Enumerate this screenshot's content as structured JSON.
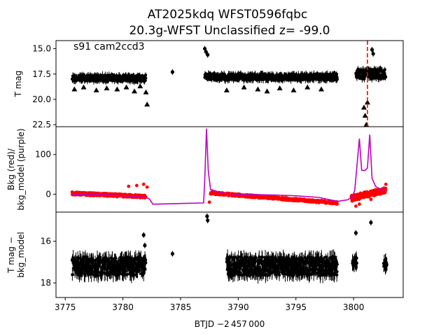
{
  "chart_data": {
    "type": "scatter",
    "title_line1": "AT2025kdq  WFST0596fqbc",
    "title_line2": "20.3g-WFST Unclassified z= -99.0",
    "annotation": "s91 cam2ccd3",
    "xlabel": "BTJD −2 457 000",
    "xlim": [
      3774.2,
      3804.3
    ],
    "xticks": [
      3775,
      3780,
      3785,
      3790,
      3795,
      3800
    ],
    "xtick_labels": [
      "3775",
      "3780",
      "3785",
      "3790",
      "3795",
      "3800"
    ],
    "vline_x": 3801.2,
    "vline_color": "#ff0000",
    "panels": [
      {
        "name": "tmag",
        "ylabel": "T mag",
        "ylim": [
          22.7,
          14.2
        ],
        "yticks": [
          15.0,
          17.5,
          20.0,
          22.5
        ],
        "ytick_labels": [
          "15.0",
          "17.5",
          "20.0",
          "22.5"
        ],
        "segments": [
          {
            "x0": 3775.6,
            "x1": 3782.0,
            "center": 17.9,
            "spread": 0.6
          },
          {
            "x0": 3787.1,
            "x1": 3798.6,
            "center": 17.8,
            "spread": 0.6
          },
          {
            "x0": 3800.2,
            "x1": 3802.8,
            "center": 17.5,
            "spread": 1.0
          }
        ],
        "triangles_upper_limits": [
          {
            "x": 3775.8,
            "y": 19.0
          },
          {
            "x": 3776.6,
            "y": 18.8
          },
          {
            "x": 3777.7,
            "y": 19.1
          },
          {
            "x": 3778.6,
            "y": 18.9
          },
          {
            "x": 3779.5,
            "y": 19.0
          },
          {
            "x": 3780.3,
            "y": 18.8
          },
          {
            "x": 3781.0,
            "y": 19.2
          },
          {
            "x": 3781.5,
            "y": 18.7
          },
          {
            "x": 3782.0,
            "y": 19.3
          },
          {
            "x": 3782.1,
            "y": 20.5
          },
          {
            "x": 3789.0,
            "y": 19.1
          },
          {
            "x": 3790.5,
            "y": 18.8
          },
          {
            "x": 3791.7,
            "y": 19.0
          },
          {
            "x": 3792.5,
            "y": 19.2
          },
          {
            "x": 3793.6,
            "y": 18.9
          },
          {
            "x": 3794.8,
            "y": 19.1
          },
          {
            "x": 3796.0,
            "y": 18.8
          },
          {
            "x": 3797.2,
            "y": 19.0
          },
          {
            "x": 3800.9,
            "y": 20.8
          },
          {
            "x": 3801.0,
            "y": 21.6
          },
          {
            "x": 3801.1,
            "y": 22.5
          },
          {
            "x": 3801.2,
            "y": 20.3
          }
        ],
        "outliers": [
          {
            "x": 3784.3,
            "y": 17.3
          },
          {
            "x": 3787.1,
            "y": 15.0
          },
          {
            "x": 3787.2,
            "y": 15.3
          },
          {
            "x": 3787.35,
            "y": 15.6
          },
          {
            "x": 3801.6,
            "y": 15.1
          },
          {
            "x": 3801.7,
            "y": 15.5
          }
        ]
      },
      {
        "name": "bkg",
        "ylabel_line1": "Bkg (red)/",
        "ylabel_line2": "bkg_model (purple)",
        "ylim": [
          -45,
          170
        ],
        "yticks": [
          0,
          100
        ],
        "ytick_labels": [
          "0",
          "100"
        ],
        "red_color": "#ff0000",
        "model_color": "#bf00bf",
        "model_line": [
          [
            3775.6,
            0
          ],
          [
            3779.0,
            -2
          ],
          [
            3781.0,
            -5
          ],
          [
            3782.0,
            -8
          ],
          [
            3782.3,
            -12
          ],
          [
            3782.6,
            -25
          ],
          [
            3787.0,
            -22
          ],
          [
            3787.1,
            40
          ],
          [
            3787.25,
            165
          ],
          [
            3787.4,
            60
          ],
          [
            3787.6,
            12
          ],
          [
            3788.5,
            4
          ],
          [
            3789.0,
            2
          ],
          [
            3790.0,
            0
          ],
          [
            3793.0,
            -2
          ],
          [
            3795.0,
            -4
          ],
          [
            3797.0,
            -8
          ],
          [
            3798.6,
            -18
          ],
          [
            3799.5,
            -14
          ],
          [
            3799.9,
            -6
          ],
          [
            3800.1,
            10
          ],
          [
            3800.5,
            140
          ],
          [
            3800.7,
            60
          ],
          [
            3801.0,
            60
          ],
          [
            3801.2,
            66
          ],
          [
            3801.4,
            150
          ],
          [
            3801.6,
            40
          ],
          [
            3801.9,
            20
          ],
          [
            3802.4,
            10
          ],
          [
            3802.8,
            12
          ]
        ],
        "red_segments": [
          {
            "x0": 3775.6,
            "x1": 3782.0,
            "start": 2,
            "end": -6,
            "spread": 7
          },
          {
            "x0": 3787.6,
            "x1": 3798.6,
            "start": 3,
            "end": -22,
            "spread": 6
          },
          {
            "x0": 3799.8,
            "x1": 3802.8,
            "start": -10,
            "end": 10,
            "spread": 15
          }
        ],
        "red_outliers": [
          {
            "x": 3780.5,
            "y": 20
          },
          {
            "x": 3781.2,
            "y": 22
          },
          {
            "x": 3781.8,
            "y": 25
          },
          {
            "x": 3782.1,
            "y": 18
          },
          {
            "x": 3787.5,
            "y": -20
          },
          {
            "x": 3800.2,
            "y": -30
          },
          {
            "x": 3800.5,
            "y": -25
          },
          {
            "x": 3801.5,
            "y": -13
          },
          {
            "x": 3802.8,
            "y": 25
          }
        ]
      },
      {
        "name": "tmag_minus_bkg",
        "ylabel_line1": "T mag −",
        "ylabel_line2": "bkg_model",
        "ylim": [
          18.7,
          14.6
        ],
        "yticks": [
          16,
          18
        ],
        "ytick_labels": [
          "16",
          "18"
        ],
        "segments": [
          {
            "x0": 3775.6,
            "x1": 3782.0,
            "center": 17.2,
            "spread": 0.9
          },
          {
            "x0": 3789.0,
            "x1": 3798.6,
            "center": 17.2,
            "spread": 0.9
          },
          {
            "x0": 3799.9,
            "x1": 3800.3,
            "center": 17.0,
            "spread": 0.5
          },
          {
            "x0": 3802.6,
            "x1": 3802.9,
            "center": 17.1,
            "spread": 0.5
          }
        ],
        "outliers": [
          {
            "x": 3781.8,
            "y": 15.7
          },
          {
            "x": 3781.9,
            "y": 16.2
          },
          {
            "x": 3784.3,
            "y": 16.6
          },
          {
            "x": 3787.3,
            "y": 14.8
          },
          {
            "x": 3787.35,
            "y": 15.0
          },
          {
            "x": 3800.2,
            "y": 15.6
          },
          {
            "x": 3801.5,
            "y": 15.1
          }
        ]
      }
    ]
  }
}
